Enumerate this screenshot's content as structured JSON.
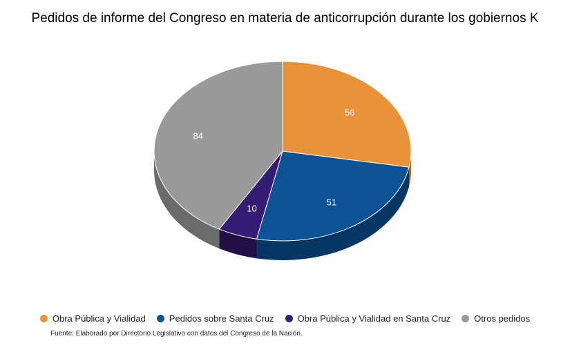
{
  "chart_data": {
    "type": "pie",
    "title": "Pedidos de informe del Congreso en materia de anticorrupción durante los gobiernos K",
    "categories": [
      "Obra Pública y Vialidad",
      "Pedidos sobre Santa Cruz",
      "Obra Pública y Vialidad en Santa Cruz",
      "Otros pedidos"
    ],
    "values": [
      56,
      51,
      10,
      84
    ],
    "colors": [
      "#e8923a",
      "#0b5394",
      "#351c75",
      "#999999"
    ],
    "side_colors": [
      "#a8651f",
      "#073763",
      "#201045",
      "#6b6b6b"
    ],
    "legend_position": "bottom",
    "style": "3d"
  },
  "source_note": "Fuente: Elaborado por Directorio Legislativo con datos del Congreso de la Nación."
}
